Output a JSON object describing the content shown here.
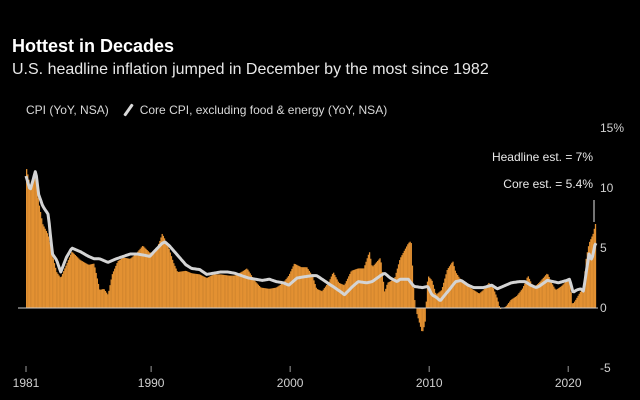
{
  "colors": {
    "bar": "#E39132",
    "line": "#D4D4D4",
    "background": "#000000",
    "text": "#FFFFFF",
    "axis": "#9A9A9A"
  },
  "chart_data": {
    "type": "bar",
    "title": "Hottest in Decades",
    "subtitle": "U.S. headline inflation jumped in December by the most since 1982",
    "legend": {
      "bar_label": "CPI (YoY, NSA)",
      "line_label": "Core CPI, excluding food & energy (YoY, NSA)"
    },
    "x_ticks": [
      "1981",
      "1990",
      "2000",
      "2010",
      "2020"
    ],
    "y_ticks": [
      {
        "value": 15,
        "label": "15%"
      },
      {
        "value": 10,
        "label": "10"
      },
      {
        "value": 5,
        "label": "5"
      },
      {
        "value": 0,
        "label": "0"
      },
      {
        "value": -5,
        "label": "-5"
      }
    ],
    "ylim": [
      -5,
      15
    ],
    "xlim": [
      1981.0,
      2022.0
    ],
    "annotations": [
      {
        "text": "Headline est. = 7%",
        "value": 7.0
      },
      {
        "text": "Core est. = 5.4%",
        "value": 5.4
      }
    ],
    "anchors_cpi": [
      [
        1981.0,
        11.8
      ],
      [
        1981.3,
        10.2
      ],
      [
        1981.7,
        11.2
      ],
      [
        1981.9,
        8.9
      ],
      [
        1982.2,
        7.0
      ],
      [
        1982.6,
        6.1
      ],
      [
        1982.9,
        4.4
      ],
      [
        1983.2,
        3.0
      ],
      [
        1983.5,
        2.5
      ],
      [
        1983.9,
        3.6
      ],
      [
        1984.3,
        4.7
      ],
      [
        1984.9,
        4.0
      ],
      [
        1985.5,
        3.6
      ],
      [
        1985.9,
        3.7
      ],
      [
        1986.3,
        1.5
      ],
      [
        1986.6,
        1.6
      ],
      [
        1986.9,
        1.1
      ],
      [
        1987.2,
        2.8
      ],
      [
        1987.6,
        3.9
      ],
      [
        1988.0,
        4.2
      ],
      [
        1988.5,
        4.1
      ],
      [
        1988.9,
        4.5
      ],
      [
        1989.4,
        5.2
      ],
      [
        1989.9,
        4.6
      ],
      [
        1990.3,
        4.7
      ],
      [
        1990.6,
        5.5
      ],
      [
        1990.8,
        6.2
      ],
      [
        1991.0,
        5.7
      ],
      [
        1991.3,
        4.9
      ],
      [
        1991.6,
        3.8
      ],
      [
        1991.9,
        3.0
      ],
      [
        1992.5,
        3.1
      ],
      [
        1992.9,
        2.9
      ],
      [
        1993.5,
        2.8
      ],
      [
        1994.0,
        2.5
      ],
      [
        1994.5,
        2.8
      ],
      [
        1995.0,
        2.8
      ],
      [
        1995.6,
        2.7
      ],
      [
        1996.0,
        2.7
      ],
      [
        1996.5,
        3.0
      ],
      [
        1996.9,
        3.3
      ],
      [
        1997.5,
        2.2
      ],
      [
        1997.9,
        1.7
      ],
      [
        1998.5,
        1.6
      ],
      [
        1999.0,
        1.7
      ],
      [
        1999.5,
        2.1
      ],
      [
        1999.9,
        2.7
      ],
      [
        2000.3,
        3.7
      ],
      [
        2000.8,
        3.4
      ],
      [
        2001.2,
        3.4
      ],
      [
        2001.6,
        2.7
      ],
      [
        2001.9,
        1.6
      ],
      [
        2002.3,
        1.4
      ],
      [
        2002.8,
        2.2
      ],
      [
        2003.1,
        3.0
      ],
      [
        2003.5,
        2.1
      ],
      [
        2003.9,
        1.9
      ],
      [
        2004.4,
        3.1
      ],
      [
        2004.9,
        3.3
      ],
      [
        2005.3,
        3.3
      ],
      [
        2005.7,
        4.7
      ],
      [
        2005.9,
        3.4
      ],
      [
        2006.5,
        4.2
      ],
      [
        2006.8,
        1.3
      ],
      [
        2007.0,
        2.1
      ],
      [
        2007.5,
        2.4
      ],
      [
        2007.9,
        4.1
      ],
      [
        2008.5,
        5.4
      ],
      [
        2008.7,
        5.6
      ],
      [
        2008.9,
        1.1
      ],
      [
        2009.1,
        -0.4
      ],
      [
        2009.5,
        -2.1
      ],
      [
        2009.7,
        -1.3
      ],
      [
        2009.9,
        2.7
      ],
      [
        2010.2,
        2.3
      ],
      [
        2010.5,
        1.1
      ],
      [
        2010.9,
        1.5
      ],
      [
        2011.3,
        3.2
      ],
      [
        2011.7,
        3.9
      ],
      [
        2011.9,
        3.0
      ],
      [
        2012.3,
        2.3
      ],
      [
        2012.8,
        1.8
      ],
      [
        2013.2,
        1.5
      ],
      [
        2013.6,
        1.2
      ],
      [
        2013.9,
        1.5
      ],
      [
        2014.3,
        2.1
      ],
      [
        2014.6,
        1.7
      ],
      [
        2014.9,
        0.8
      ],
      [
        2015.1,
        -0.1
      ],
      [
        2015.5,
        0.1
      ],
      [
        2015.9,
        0.7
      ],
      [
        2016.3,
        1.0
      ],
      [
        2016.7,
        1.6
      ],
      [
        2016.9,
        2.1
      ],
      [
        2017.1,
        2.7
      ],
      [
        2017.5,
        1.7
      ],
      [
        2017.9,
        2.1
      ],
      [
        2018.5,
        2.9
      ],
      [
        2018.9,
        1.9
      ],
      [
        2019.1,
        1.5
      ],
      [
        2019.5,
        1.8
      ],
      [
        2019.9,
        2.3
      ],
      [
        2020.1,
        2.5
      ],
      [
        2020.3,
        0.3
      ],
      [
        2020.5,
        0.6
      ],
      [
        2020.9,
        1.4
      ],
      [
        2021.1,
        1.7
      ],
      [
        2021.3,
        4.2
      ],
      [
        2021.5,
        5.4
      ],
      [
        2021.8,
        6.2
      ],
      [
        2021.95,
        7.0
      ]
    ],
    "anchors_core": [
      [
        1981.0,
        11.0
      ],
      [
        1981.3,
        9.8
      ],
      [
        1981.7,
        11.5
      ],
      [
        1981.9,
        9.5
      ],
      [
        1982.2,
        8.5
      ],
      [
        1982.6,
        7.8
      ],
      [
        1982.9,
        4.5
      ],
      [
        1983.2,
        4.0
      ],
      [
        1983.5,
        3.0
      ],
      [
        1983.9,
        4.2
      ],
      [
        1984.3,
        5.0
      ],
      [
        1984.9,
        4.7
      ],
      [
        1985.5,
        4.3
      ],
      [
        1985.9,
        4.1
      ],
      [
        1986.3,
        4.1
      ],
      [
        1986.9,
        3.8
      ],
      [
        1987.5,
        4.1
      ],
      [
        1988.0,
        4.3
      ],
      [
        1988.5,
        4.5
      ],
      [
        1989.0,
        4.5
      ],
      [
        1989.5,
        4.4
      ],
      [
        1989.9,
        4.3
      ],
      [
        1990.3,
        4.8
      ],
      [
        1990.8,
        5.4
      ],
      [
        1991.0,
        5.5
      ],
      [
        1991.3,
        5.2
      ],
      [
        1991.9,
        4.4
      ],
      [
        1992.5,
        3.6
      ],
      [
        1992.9,
        3.3
      ],
      [
        1993.5,
        3.2
      ],
      [
        1994.0,
        2.8
      ],
      [
        1994.5,
        2.9
      ],
      [
        1995.0,
        3.0
      ],
      [
        1995.5,
        3.0
      ],
      [
        1996.0,
        2.9
      ],
      [
        1996.5,
        2.7
      ],
      [
        1997.0,
        2.5
      ],
      [
        1997.5,
        2.4
      ],
      [
        1998.0,
        2.3
      ],
      [
        1998.5,
        2.4
      ],
      [
        1999.0,
        2.2
      ],
      [
        1999.5,
        2.1
      ],
      [
        1999.9,
        1.9
      ],
      [
        2000.5,
        2.5
      ],
      [
        2001.0,
        2.6
      ],
      [
        2001.6,
        2.7
      ],
      [
        2001.9,
        2.7
      ],
      [
        2002.3,
        2.4
      ],
      [
        2002.8,
        2.0
      ],
      [
        2003.2,
        1.7
      ],
      [
        2003.7,
        1.3
      ],
      [
        2003.9,
        1.1
      ],
      [
        2004.5,
        1.8
      ],
      [
        2004.9,
        2.2
      ],
      [
        2005.5,
        2.1
      ],
      [
        2005.9,
        2.2
      ],
      [
        2006.5,
        2.7
      ],
      [
        2006.8,
        2.9
      ],
      [
        2007.2,
        2.5
      ],
      [
        2007.7,
        2.2
      ],
      [
        2007.9,
        2.4
      ],
      [
        2008.5,
        2.4
      ],
      [
        2008.9,
        1.8
      ],
      [
        2009.5,
        1.7
      ],
      [
        2009.9,
        1.8
      ],
      [
        2010.2,
        1.1
      ],
      [
        2010.5,
        0.9
      ],
      [
        2010.8,
        0.6
      ],
      [
        2011.0,
        0.9
      ],
      [
        2011.5,
        1.6
      ],
      [
        2011.9,
        2.2
      ],
      [
        2012.3,
        2.3
      ],
      [
        2012.8,
        1.9
      ],
      [
        2013.2,
        1.7
      ],
      [
        2013.6,
        1.7
      ],
      [
        2013.9,
        1.7
      ],
      [
        2014.5,
        1.9
      ],
      [
        2014.9,
        1.6
      ],
      [
        2015.3,
        1.8
      ],
      [
        2015.9,
        2.1
      ],
      [
        2016.5,
        2.2
      ],
      [
        2016.9,
        2.2
      ],
      [
        2017.3,
        1.9
      ],
      [
        2017.7,
        1.7
      ],
      [
        2017.9,
        1.8
      ],
      [
        2018.5,
        2.3
      ],
      [
        2018.9,
        2.2
      ],
      [
        2019.3,
        2.1
      ],
      [
        2019.9,
        2.3
      ],
      [
        2020.1,
        2.4
      ],
      [
        2020.35,
        1.3
      ],
      [
        2020.6,
        1.5
      ],
      [
        2020.9,
        1.6
      ],
      [
        2021.1,
        1.4
      ],
      [
        2021.3,
        3.0
      ],
      [
        2021.5,
        4.5
      ],
      [
        2021.7,
        4.0
      ],
      [
        2021.95,
        5.4
      ]
    ]
  }
}
